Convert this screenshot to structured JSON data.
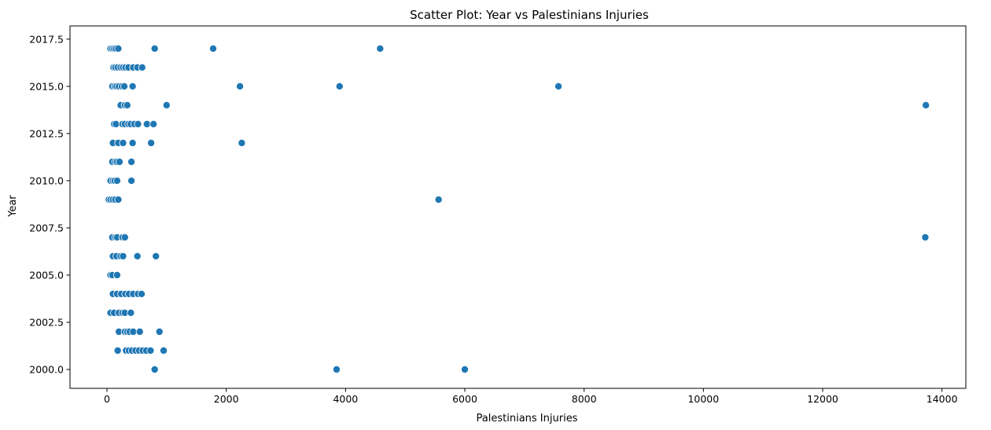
{
  "chart_data": {
    "type": "scatter",
    "title": "Scatter Plot: Year vs Palestinians Injuries",
    "xlabel": "Palestinians Injuries",
    "ylabel": "Year",
    "xlim": [
      -620,
      14400
    ],
    "ylim": [
      1999.0,
      2018.2
    ],
    "x_ticks": [
      0,
      2000,
      4000,
      6000,
      8000,
      10000,
      12000,
      14000
    ],
    "x_tick_labels": [
      "0",
      "2000",
      "4000",
      "6000",
      "8000",
      "10000",
      "12000",
      "14000"
    ],
    "y_ticks": [
      2000.0,
      2002.5,
      2005.0,
      2007.5,
      2010.0,
      2012.5,
      2015.0,
      2017.5
    ],
    "y_tick_labels": [
      "2000.0",
      "2002.5",
      "2005.0",
      "2007.5",
      "2010.0",
      "2012.5",
      "2015.0",
      "2017.5"
    ],
    "grid": false,
    "legend": "none",
    "marker_color": "#1f77b4",
    "marker_edge_color": "#ffffff",
    "points": [
      {
        "x": 60,
        "y": 2017
      },
      {
        "x": 90,
        "y": 2017
      },
      {
        "x": 120,
        "y": 2017
      },
      {
        "x": 150,
        "y": 2017
      },
      {
        "x": 190,
        "y": 2017
      },
      {
        "x": 800,
        "y": 2017
      },
      {
        "x": 1780,
        "y": 2017
      },
      {
        "x": 4580,
        "y": 2017
      },
      {
        "x": 110,
        "y": 2016
      },
      {
        "x": 140,
        "y": 2016
      },
      {
        "x": 180,
        "y": 2016
      },
      {
        "x": 230,
        "y": 2016
      },
      {
        "x": 270,
        "y": 2016
      },
      {
        "x": 310,
        "y": 2016
      },
      {
        "x": 360,
        "y": 2016
      },
      {
        "x": 440,
        "y": 2016
      },
      {
        "x": 510,
        "y": 2016
      },
      {
        "x": 590,
        "y": 2016
      },
      {
        "x": 90,
        "y": 2015
      },
      {
        "x": 130,
        "y": 2015
      },
      {
        "x": 160,
        "y": 2015
      },
      {
        "x": 200,
        "y": 2015
      },
      {
        "x": 250,
        "y": 2015
      },
      {
        "x": 290,
        "y": 2015
      },
      {
        "x": 430,
        "y": 2015
      },
      {
        "x": 2230,
        "y": 2015
      },
      {
        "x": 3900,
        "y": 2015
      },
      {
        "x": 7570,
        "y": 2015
      },
      {
        "x": 230,
        "y": 2014
      },
      {
        "x": 300,
        "y": 2014
      },
      {
        "x": 340,
        "y": 2014
      },
      {
        "x": 1000,
        "y": 2014
      },
      {
        "x": 13730,
        "y": 2014
      },
      {
        "x": 120,
        "y": 2013
      },
      {
        "x": 150,
        "y": 2013
      },
      {
        "x": 260,
        "y": 2013
      },
      {
        "x": 300,
        "y": 2013
      },
      {
        "x": 360,
        "y": 2013
      },
      {
        "x": 400,
        "y": 2013
      },
      {
        "x": 460,
        "y": 2013
      },
      {
        "x": 520,
        "y": 2013
      },
      {
        "x": 670,
        "y": 2013
      },
      {
        "x": 780,
        "y": 2013
      },
      {
        "x": 100,
        "y": 2012
      },
      {
        "x": 190,
        "y": 2012
      },
      {
        "x": 270,
        "y": 2012
      },
      {
        "x": 430,
        "y": 2012
      },
      {
        "x": 740,
        "y": 2012
      },
      {
        "x": 2260,
        "y": 2012
      },
      {
        "x": 90,
        "y": 2011
      },
      {
        "x": 140,
        "y": 2011
      },
      {
        "x": 170,
        "y": 2011
      },
      {
        "x": 210,
        "y": 2011
      },
      {
        "x": 410,
        "y": 2011
      },
      {
        "x": 60,
        "y": 2010
      },
      {
        "x": 100,
        "y": 2010
      },
      {
        "x": 130,
        "y": 2010
      },
      {
        "x": 170,
        "y": 2010
      },
      {
        "x": 410,
        "y": 2010
      },
      {
        "x": 30,
        "y": 2009
      },
      {
        "x": 60,
        "y": 2009
      },
      {
        "x": 100,
        "y": 2009
      },
      {
        "x": 140,
        "y": 2009
      },
      {
        "x": 190,
        "y": 2009
      },
      {
        "x": 5560,
        "y": 2009
      },
      {
        "x": 90,
        "y": 2007
      },
      {
        "x": 140,
        "y": 2007
      },
      {
        "x": 170,
        "y": 2007
      },
      {
        "x": 260,
        "y": 2007
      },
      {
        "x": 300,
        "y": 2007
      },
      {
        "x": 13720,
        "y": 2007
      },
      {
        "x": 100,
        "y": 2006
      },
      {
        "x": 160,
        "y": 2006
      },
      {
        "x": 230,
        "y": 2006
      },
      {
        "x": 270,
        "y": 2006
      },
      {
        "x": 510,
        "y": 2006
      },
      {
        "x": 820,
        "y": 2006
      },
      {
        "x": 60,
        "y": 2005
      },
      {
        "x": 90,
        "y": 2005
      },
      {
        "x": 170,
        "y": 2005
      },
      {
        "x": 100,
        "y": 2004
      },
      {
        "x": 170,
        "y": 2004
      },
      {
        "x": 240,
        "y": 2004
      },
      {
        "x": 310,
        "y": 2004
      },
      {
        "x": 370,
        "y": 2004
      },
      {
        "x": 440,
        "y": 2004
      },
      {
        "x": 520,
        "y": 2004
      },
      {
        "x": 580,
        "y": 2004
      },
      {
        "x": 60,
        "y": 2003
      },
      {
        "x": 120,
        "y": 2003
      },
      {
        "x": 200,
        "y": 2003
      },
      {
        "x": 260,
        "y": 2003
      },
      {
        "x": 300,
        "y": 2003
      },
      {
        "x": 400,
        "y": 2003
      },
      {
        "x": 200,
        "y": 2002
      },
      {
        "x": 300,
        "y": 2002
      },
      {
        "x": 340,
        "y": 2002
      },
      {
        "x": 380,
        "y": 2002
      },
      {
        "x": 440,
        "y": 2002
      },
      {
        "x": 550,
        "y": 2002
      },
      {
        "x": 880,
        "y": 2002
      },
      {
        "x": 180,
        "y": 2001
      },
      {
        "x": 320,
        "y": 2001
      },
      {
        "x": 370,
        "y": 2001
      },
      {
        "x": 420,
        "y": 2001
      },
      {
        "x": 480,
        "y": 2001
      },
      {
        "x": 540,
        "y": 2001
      },
      {
        "x": 600,
        "y": 2001
      },
      {
        "x": 660,
        "y": 2001
      },
      {
        "x": 730,
        "y": 2001
      },
      {
        "x": 950,
        "y": 2001
      },
      {
        "x": 800,
        "y": 2000
      },
      {
        "x": 3850,
        "y": 2000
      },
      {
        "x": 6000,
        "y": 2000
      }
    ]
  }
}
